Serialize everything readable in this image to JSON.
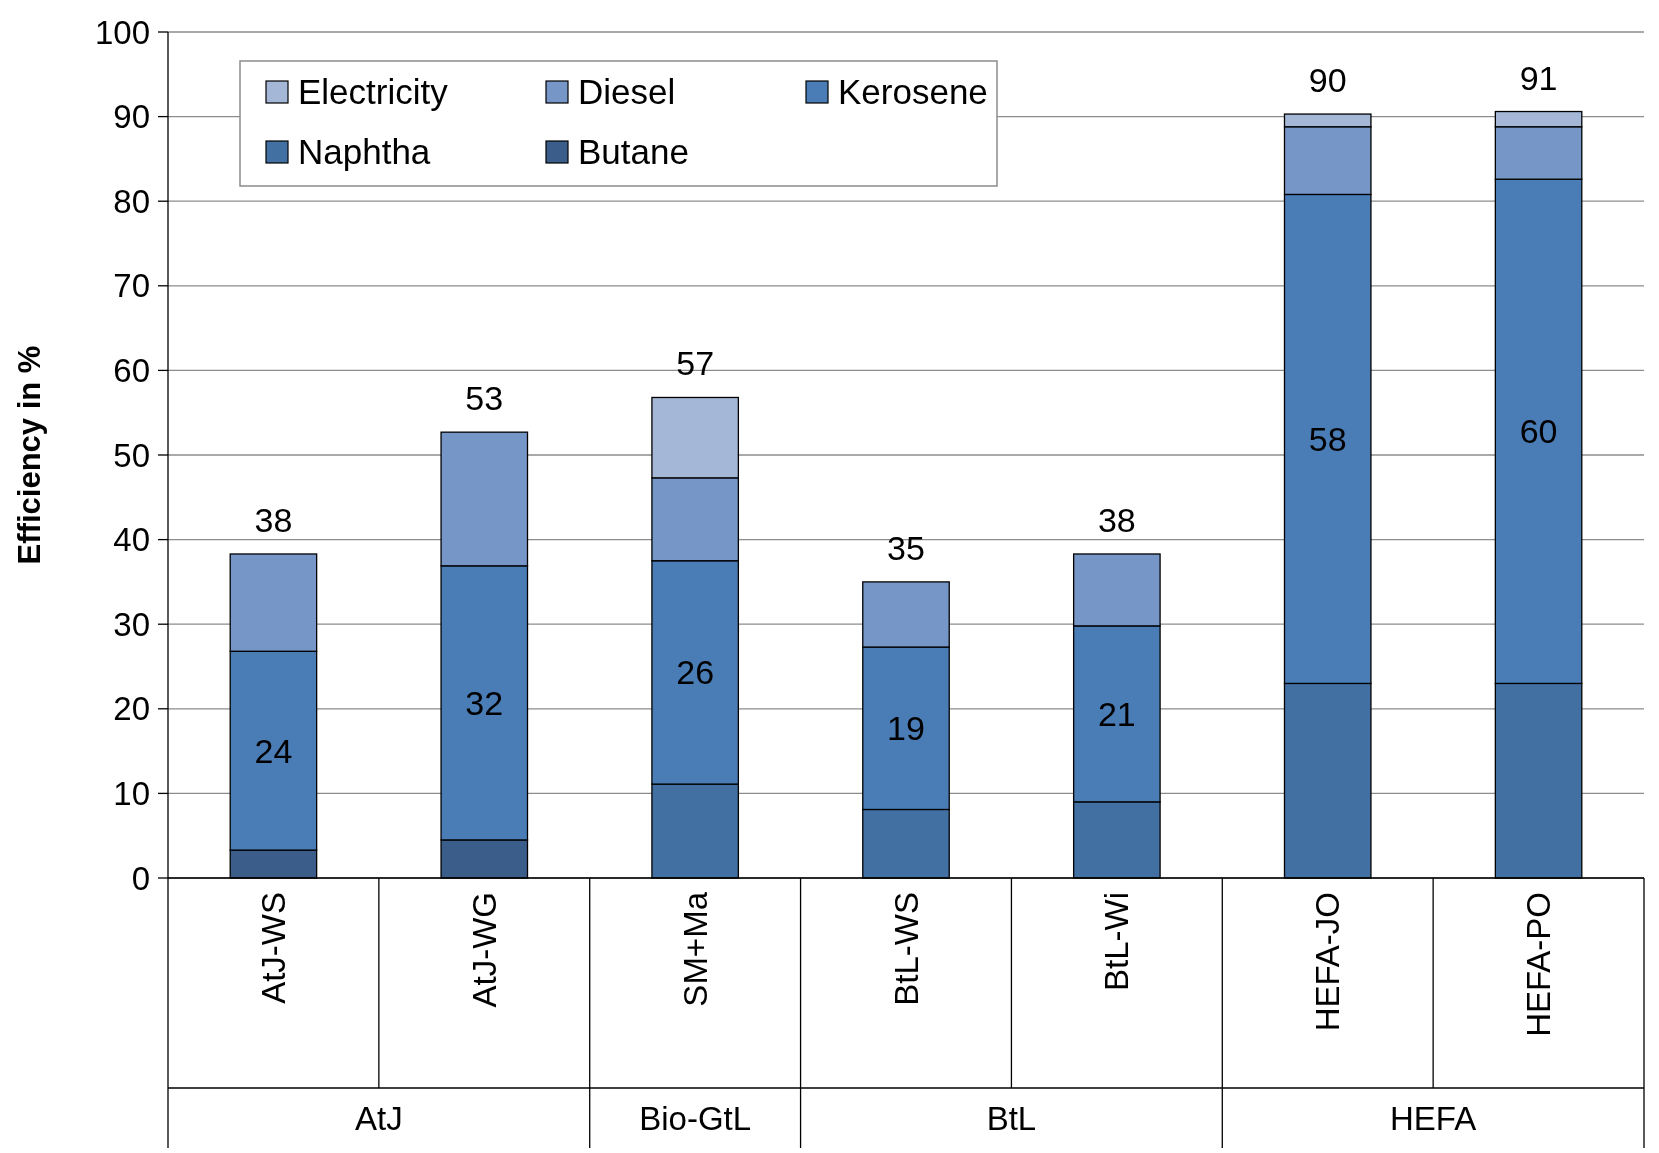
{
  "chart_data": {
    "type": "bar",
    "stacked": true,
    "ylabel": "Efficiency in %",
    "categories": [
      "AtJ-WS",
      "AtJ-WG",
      "SM+Ma",
      "BtL-WS",
      "BtL-Wi",
      "HEFA-JO",
      "HEFA-PO"
    ],
    "series": [
      {
        "name": "Butane",
        "color": "#3b5d8a",
        "values": [
          3.3,
          4.5,
          null,
          null,
          null,
          null,
          null
        ]
      },
      {
        "name": "Naphtha",
        "color": "#4270a3",
        "values": [
          null,
          null,
          11.1,
          8.1,
          9.0,
          23.0,
          23.0
        ]
      },
      {
        "name": "Kerosene",
        "color": "#4a7cb6",
        "values": [
          23.5,
          32.4,
          26.4,
          19.2,
          20.8,
          57.8,
          59.6
        ],
        "value_labels": [
          "24",
          "32",
          "26",
          "19",
          "21",
          "58",
          "60"
        ]
      },
      {
        "name": "Diesel",
        "color": "#7596c6",
        "values": [
          11.5,
          15.8,
          9.8,
          7.7,
          8.5,
          8.0,
          6.2
        ]
      },
      {
        "name": "Electricity",
        "color": "#a5b7d6",
        "values": [
          null,
          null,
          9.5,
          null,
          null,
          1.5,
          1.8
        ]
      }
    ],
    "totals": [
      "38",
      "53",
      "57",
      "35",
      "38",
      "90",
      "91"
    ],
    "annotations": [
      "AtJ",
      "Bio-GtL",
      "BtL",
      "HEFA"
    ],
    "ylim": [
      0,
      100
    ],
    "yticks": [
      0,
      10,
      20,
      30,
      40,
      50,
      60,
      70,
      80,
      90,
      100
    ],
    "grid": "y",
    "legend": "top left"
  }
}
